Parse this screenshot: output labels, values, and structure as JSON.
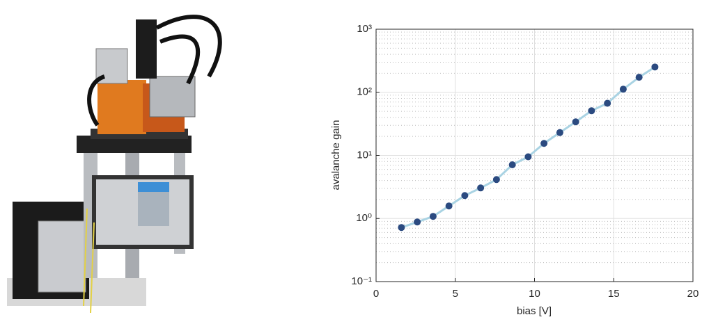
{
  "chart_data": {
    "type": "scatter",
    "xlabel": "bias [V]",
    "ylabel": "avalanche gain",
    "x": [
      1.6,
      2.6,
      3.6,
      4.6,
      5.6,
      6.6,
      7.6,
      8.6,
      9.6,
      10.6,
      11.6,
      12.6,
      13.6,
      14.6,
      15.6,
      16.6,
      17.6
    ],
    "series": [
      {
        "color": "#2b4a80",
        "line_color": "#a9d3e3",
        "values": [
          0.72,
          0.88,
          1.08,
          1.58,
          2.31,
          3.05,
          4.14,
          7.1,
          9.5,
          15.5,
          23,
          34,
          51,
          67,
          112,
          173,
          252
        ]
      }
    ],
    "xlim": [
      0,
      20
    ],
    "xticks": [
      0,
      5,
      10,
      15,
      20
    ],
    "ylim": [
      0.1,
      1000
    ],
    "yscale": "log",
    "yticks": [
      {
        "value": 0.1,
        "label": "10⁻¹"
      },
      {
        "value": 1,
        "label": "10⁰"
      },
      {
        "value": 10,
        "label": "10¹"
      },
      {
        "value": 100,
        "label": "10²"
      },
      {
        "value": 1000,
        "label": "10³"
      }
    ],
    "grid": true,
    "minor_grid": true
  }
}
